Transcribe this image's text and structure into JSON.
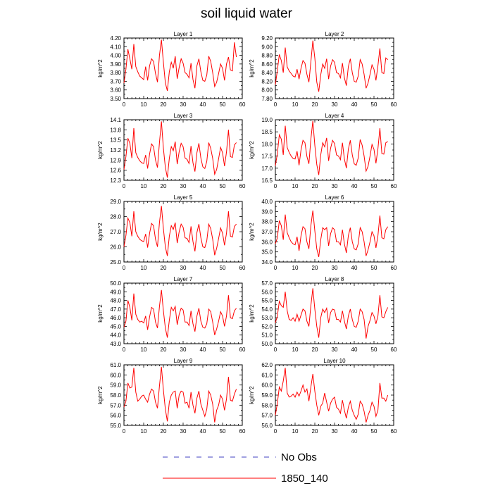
{
  "figure": {
    "title": "soil liquid water"
  },
  "legend": [
    {
      "label": "No Obs",
      "color": "#4040c0",
      "dash": true
    },
    {
      "label": "1850_140",
      "color": "#ff0000",
      "dash": false
    }
  ],
  "chart_data": [
    {
      "type": "line",
      "title": "Layer 1",
      "ylabel": "kg/m^2",
      "xlim": [
        0,
        60
      ],
      "ylim": [
        3.5,
        4.2
      ],
      "xticks": [
        "0",
        "10",
        "20",
        "30",
        "40",
        "50",
        "60"
      ],
      "yticks": [
        "3.50",
        "3.60",
        "3.70",
        "3.80",
        "3.90",
        "4.00",
        "4.10",
        "4.20"
      ],
      "series": [
        {
          "values": [
            3.68,
            3.84,
            4.07,
            3.96,
            3.84,
            4.13,
            3.87,
            3.81,
            3.76,
            3.74,
            3.72,
            3.87,
            3.71,
            3.88,
            3.96,
            3.93,
            3.79,
            3.69,
            4.0,
            4.18,
            3.92,
            3.68,
            3.59,
            3.81,
            3.92,
            3.85,
            3.99,
            3.73,
            3.86,
            3.96,
            3.91,
            3.8,
            3.78,
            3.74,
            3.91,
            3.72,
            3.62,
            3.88,
            3.96,
            3.81,
            3.71,
            3.7,
            3.77,
            3.99,
            3.93,
            3.8,
            3.64,
            3.69,
            3.79,
            3.9,
            3.85,
            3.71,
            3.9,
            3.98,
            3.83,
            3.82,
            4.15,
            3.98
          ]
        }
      ]
    },
    {
      "type": "line",
      "title": "Layer 2",
      "ylabel": "kg/m^2",
      "xlim": [
        0,
        60
      ],
      "ylim": [
        7.8,
        9.2
      ],
      "xticks": [
        "0",
        "10",
        "20",
        "30",
        "40",
        "50",
        "60"
      ],
      "yticks": [
        "7.80",
        "8.00",
        "8.20",
        "8.40",
        "8.60",
        "8.80",
        "9.00",
        "9.20"
      ],
      "series": [
        {
          "values": [
            8.12,
            8.45,
            8.82,
            8.68,
            8.4,
            8.98,
            8.53,
            8.44,
            8.38,
            8.32,
            8.3,
            8.48,
            8.25,
            8.5,
            8.68,
            8.62,
            8.36,
            8.18,
            8.65,
            9.14,
            8.74,
            8.18,
            7.96,
            8.35,
            8.6,
            8.5,
            8.72,
            8.25,
            8.55,
            8.7,
            8.64,
            8.4,
            8.38,
            8.28,
            8.62,
            8.28,
            8.1,
            8.54,
            8.72,
            8.4,
            8.2,
            8.18,
            8.32,
            8.7,
            8.6,
            8.36,
            8.04,
            8.16,
            8.36,
            8.58,
            8.48,
            8.22,
            8.56,
            8.96,
            8.4,
            8.38,
            8.74,
            8.7
          ]
        }
      ]
    },
    {
      "type": "line",
      "title": "Layer 3",
      "ylabel": "kg/m^2",
      "xlim": [
        0,
        60
      ],
      "ylim": [
        12.3,
        14.1
      ],
      "xticks": [
        "0",
        "10",
        "20",
        "30",
        "40",
        "50",
        "60"
      ],
      "yticks": [
        "12.3",
        "12.6",
        "12.9",
        "13.2",
        "13.5",
        "13.8",
        "14.1"
      ],
      "series": [
        {
          "values": [
            12.62,
            13.0,
            13.55,
            13.4,
            12.96,
            13.85,
            13.12,
            12.98,
            12.88,
            12.82,
            12.8,
            13.05,
            12.65,
            13.08,
            13.38,
            13.3,
            12.9,
            12.68,
            13.42,
            14.05,
            13.25,
            12.68,
            12.38,
            12.95,
            13.3,
            13.18,
            13.45,
            12.78,
            13.15,
            13.4,
            13.3,
            12.96,
            12.92,
            12.8,
            13.32,
            12.82,
            12.56,
            13.12,
            13.4,
            12.96,
            12.7,
            12.65,
            12.86,
            13.42,
            13.25,
            12.95,
            12.48,
            12.62,
            12.94,
            13.28,
            13.12,
            12.72,
            13.14,
            13.8,
            13.0,
            12.98,
            13.35,
            13.42
          ]
        }
      ]
    },
    {
      "type": "line",
      "title": "Layer 4",
      "ylabel": "kg/m^2",
      "xlim": [
        0,
        60
      ],
      "ylim": [
        16.5,
        19.0
      ],
      "xticks": [
        "0",
        "10",
        "20",
        "30",
        "40",
        "50",
        "60"
      ],
      "yticks": [
        "16.5",
        "17.0",
        "17.5",
        "18.0",
        "18.5",
        "19.0"
      ],
      "series": [
        {
          "values": [
            17.1,
            17.6,
            18.38,
            18.2,
            17.55,
            18.75,
            17.85,
            17.65,
            17.5,
            17.4,
            17.38,
            17.7,
            17.12,
            17.75,
            18.15,
            18.05,
            17.48,
            17.18,
            18.2,
            18.95,
            17.95,
            17.15,
            16.72,
            17.55,
            18.05,
            17.88,
            18.25,
            17.3,
            17.82,
            18.15,
            18.02,
            17.55,
            17.5,
            17.35,
            18.05,
            17.38,
            17.0,
            17.78,
            18.15,
            17.55,
            17.18,
            17.12,
            17.42,
            18.18,
            17.95,
            17.5,
            16.88,
            17.08,
            17.5,
            17.98,
            17.78,
            17.2,
            17.8,
            18.65,
            17.6,
            17.58,
            18.05,
            18.1
          ]
        }
      ]
    },
    {
      "type": "line",
      "title": "Layer 5",
      "ylabel": "kg/m^2",
      "xlim": [
        0,
        60
      ],
      "ylim": [
        25.0,
        29.0
      ],
      "xticks": [
        "0",
        "10",
        "20",
        "30",
        "40",
        "50",
        "60"
      ],
      "yticks": [
        "25.0",
        "26.0",
        "27.0",
        "28.0",
        "29.0"
      ],
      "series": [
        {
          "values": [
            26.0,
            26.75,
            27.9,
            27.6,
            26.7,
            28.35,
            27.0,
            26.7,
            26.5,
            26.4,
            26.35,
            26.85,
            25.95,
            26.9,
            27.55,
            27.4,
            26.5,
            26.0,
            27.6,
            28.7,
            27.2,
            26.0,
            25.4,
            26.7,
            27.4,
            27.15,
            27.6,
            26.25,
            27.0,
            27.5,
            27.3,
            26.6,
            26.55,
            26.3,
            27.35,
            26.35,
            25.7,
            26.95,
            27.5,
            26.6,
            26.0,
            25.95,
            26.4,
            27.5,
            27.2,
            26.5,
            25.45,
            25.9,
            26.55,
            27.25,
            26.9,
            26.1,
            26.9,
            28.35,
            26.7,
            26.65,
            27.35,
            27.5
          ]
        }
      ]
    },
    {
      "type": "line",
      "title": "Layer 6",
      "ylabel": "kg/m^2",
      "xlim": [
        0,
        60
      ],
      "ylim": [
        34.0,
        40.0
      ],
      "xticks": [
        "0",
        "10",
        "20",
        "30",
        "40",
        "50",
        "60"
      ],
      "yticks": [
        "34.0",
        "35.0",
        "36.0",
        "37.0",
        "38.0",
        "39.0",
        "40.0"
      ],
      "series": [
        {
          "values": [
            35.8,
            36.4,
            38.1,
            37.6,
            36.2,
            38.7,
            36.9,
            36.4,
            36.0,
            35.8,
            35.7,
            36.5,
            35.1,
            36.6,
            37.5,
            37.3,
            36.0,
            35.3,
            37.6,
            39.1,
            37.1,
            35.3,
            34.5,
            36.2,
            37.4,
            37.2,
            37.4,
            35.6,
            36.8,
            37.4,
            37.2,
            36.0,
            36.0,
            35.7,
            37.2,
            35.8,
            34.9,
            36.6,
            37.4,
            36.0,
            35.3,
            35.2,
            35.8,
            37.4,
            37.0,
            36.0,
            34.6,
            35.2,
            36.0,
            37.0,
            36.6,
            35.4,
            36.6,
            38.6,
            36.4,
            36.3,
            37.2,
            37.5
          ]
        }
      ]
    },
    {
      "type": "line",
      "title": "Layer 7",
      "ylabel": "kg/m^2",
      "xlim": [
        0,
        60
      ],
      "ylim": [
        43.0,
        50.0
      ],
      "xticks": [
        "0",
        "10",
        "20",
        "30",
        "40",
        "50",
        "60"
      ],
      "yticks": [
        "43.0",
        "44.0",
        "45.0",
        "46.0",
        "47.0",
        "48.0",
        "49.0",
        "50.0"
      ],
      "series": [
        {
          "values": [
            44.9,
            45.6,
            48.0,
            47.2,
            45.7,
            48.8,
            46.4,
            45.8,
            45.5,
            45.6,
            45.4,
            46.2,
            44.6,
            46.1,
            47.2,
            47.0,
            45.5,
            44.8,
            47.3,
            49.2,
            46.8,
            44.8,
            43.7,
            45.7,
            47.2,
            46.8,
            47.3,
            45.2,
            46.4,
            47.1,
            46.9,
            45.5,
            45.5,
            45.1,
            46.8,
            45.3,
            44.4,
            46.2,
            47.1,
            45.6,
            44.9,
            44.8,
            45.3,
            47.0,
            46.7,
            45.5,
            44.0,
            44.7,
            45.6,
            46.7,
            46.2,
            45.0,
            46.2,
            48.6,
            46.0,
            45.9,
            46.8,
            47.1
          ]
        }
      ]
    },
    {
      "type": "line",
      "title": "Layer 8",
      "ylabel": "kg/m^2",
      "xlim": [
        0,
        60
      ],
      "ylim": [
        50.0,
        57.0
      ],
      "xticks": [
        "0",
        "10",
        "20",
        "30",
        "40",
        "50",
        "60"
      ],
      "yticks": [
        "50.0",
        "51.0",
        "52.0",
        "53.0",
        "54.0",
        "55.0",
        "56.0",
        "57.0"
      ],
      "series": [
        {
          "values": [
            52.4,
            53.2,
            54.9,
            54.4,
            54.2,
            56.0,
            53.8,
            52.8,
            52.7,
            53.0,
            52.6,
            53.4,
            52.6,
            53.3,
            54.0,
            53.8,
            52.6,
            52.0,
            54.4,
            56.4,
            54.0,
            52.0,
            50.7,
            53.0,
            54.0,
            53.6,
            54.1,
            52.4,
            53.6,
            54.0,
            53.9,
            52.8,
            52.8,
            52.5,
            53.8,
            52.6,
            51.7,
            53.2,
            54.0,
            52.8,
            52.0,
            51.9,
            52.6,
            54.0,
            53.7,
            52.8,
            50.6,
            52.0,
            52.7,
            53.6,
            53.2,
            52.3,
            53.2,
            55.6,
            53.1,
            53.0,
            53.7,
            54.2
          ]
        }
      ]
    },
    {
      "type": "line",
      "title": "Layer 9",
      "ylabel": "kg/m^2",
      "xlim": [
        0,
        60
      ],
      "ylim": [
        55.0,
        61.0
      ],
      "xticks": [
        "0",
        "10",
        "20",
        "30",
        "40",
        "50",
        "60"
      ],
      "yticks": [
        "55.0",
        "56.0",
        "57.0",
        "58.0",
        "59.0",
        "60.0",
        "61.0"
      ],
      "series": [
        {
          "values": [
            56.8,
            57.4,
            59.2,
            58.7,
            58.8,
            60.7,
            58.3,
            57.4,
            57.6,
            57.9,
            58.0,
            57.6,
            57.3,
            58.1,
            58.6,
            58.4,
            57.3,
            56.7,
            58.9,
            60.8,
            58.5,
            56.6,
            55.4,
            57.3,
            58.0,
            58.3,
            58.4,
            56.7,
            58.0,
            58.4,
            58.3,
            57.2,
            57.3,
            56.7,
            58.3,
            57.0,
            56.2,
            57.7,
            58.4,
            57.1,
            56.5,
            55.9,
            56.6,
            58.4,
            58.0,
            57.1,
            55.3,
            56.5,
            57.0,
            58.0,
            57.6,
            56.5,
            57.6,
            59.8,
            57.5,
            57.4,
            58.1,
            58.6
          ]
        }
      ]
    },
    {
      "type": "line",
      "title": "Layer 10",
      "ylabel": "kg/m^2",
      "xlim": [
        0,
        60
      ],
      "ylim": [
        56.0,
        62.0
      ],
      "xticks": [
        "0",
        "10",
        "20",
        "30",
        "40",
        "50",
        "60"
      ],
      "yticks": [
        "56.0",
        "57.0",
        "58.0",
        "59.0",
        "60.0",
        "61.0",
        "62.0"
      ],
      "series": [
        {
          "values": [
            57.0,
            58.2,
            59.8,
            59.4,
            60.4,
            61.7,
            59.2,
            58.8,
            58.9,
            59.1,
            58.8,
            59.3,
            58.9,
            59.4,
            60.0,
            59.3,
            59.6,
            58.4,
            59.8,
            61.1,
            59.4,
            58.0,
            57.0,
            57.9,
            58.2,
            59.2,
            58.3,
            57.4,
            58.2,
            58.6,
            58.8,
            57.8,
            57.6,
            57.2,
            58.5,
            57.5,
            56.7,
            57.8,
            58.4,
            57.5,
            57.0,
            56.6,
            57.1,
            58.4,
            58.1,
            57.4,
            56.3,
            57.0,
            57.5,
            58.3,
            57.9,
            56.9,
            57.5,
            60.2,
            58.7,
            58.7,
            58.4,
            59.0
          ]
        }
      ]
    }
  ]
}
